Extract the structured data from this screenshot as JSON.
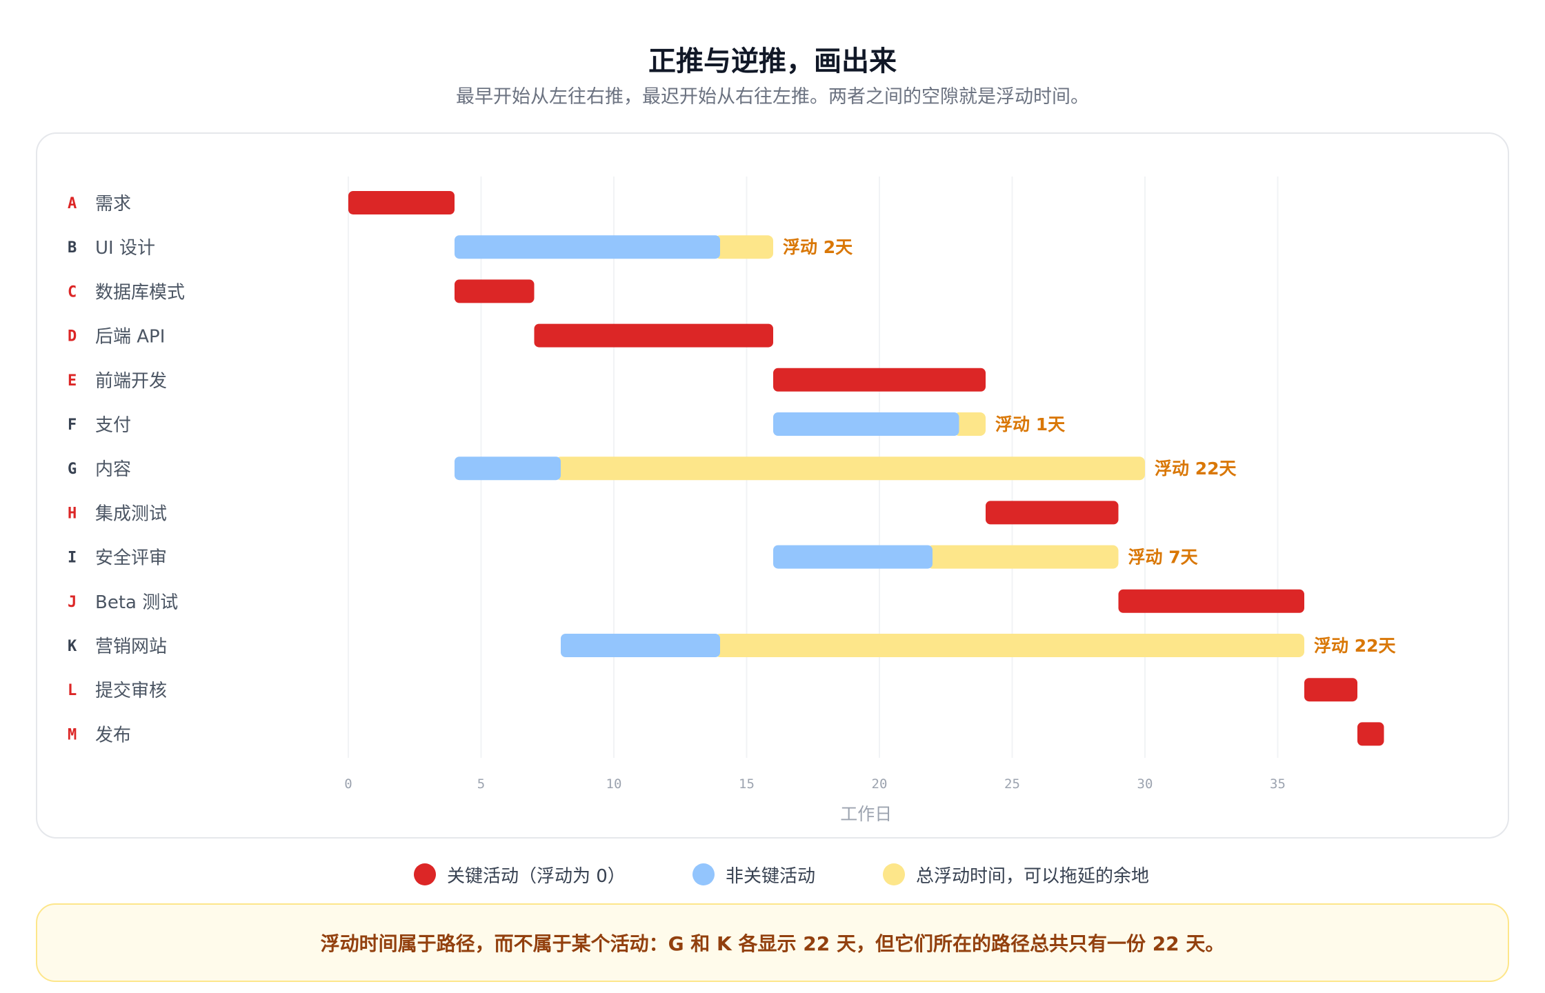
{
  "header": {
    "title": "正推与逆推，画出来",
    "subtitle": "最早开始从左往右推，最迟开始从右往左推。两者之间的空隙就是浮动时间。"
  },
  "colors": {
    "critical": "#dc2626",
    "non_critical": "#93c5fd",
    "float": "#fde68a",
    "float_label": "#d97706",
    "id_critical": "#dc2626",
    "id_normal": "#374151",
    "grid": "#f1f3f5",
    "axis_text": "#9ca3af"
  },
  "chart_data": {
    "type": "gantt",
    "xlabel": "工作日",
    "xlim": [
      0,
      39
    ],
    "xticks": [
      0,
      5,
      10,
      15,
      20,
      25,
      30,
      35
    ],
    "grid": true,
    "float_label_prefix": "浮动",
    "float_label_suffix": "天",
    "tasks": [
      {
        "id": "A",
        "name": "需求",
        "start": 0,
        "end": 4,
        "float": 0,
        "critical": true
      },
      {
        "id": "B",
        "name": "UI 设计",
        "start": 4,
        "end": 14,
        "float": 2,
        "critical": false
      },
      {
        "id": "C",
        "name": "数据库模式",
        "start": 4,
        "end": 7,
        "float": 0,
        "critical": true
      },
      {
        "id": "D",
        "name": "后端 API",
        "start": 7,
        "end": 16,
        "float": 0,
        "critical": true
      },
      {
        "id": "E",
        "name": "前端开发",
        "start": 16,
        "end": 24,
        "float": 0,
        "critical": true
      },
      {
        "id": "F",
        "name": "支付",
        "start": 16,
        "end": 23,
        "float": 1,
        "critical": false
      },
      {
        "id": "G",
        "name": "内容",
        "start": 4,
        "end": 8,
        "float": 22,
        "critical": false
      },
      {
        "id": "H",
        "name": "集成测试",
        "start": 24,
        "end": 29,
        "float": 0,
        "critical": true
      },
      {
        "id": "I",
        "name": "安全评审",
        "start": 16,
        "end": 22,
        "float": 7,
        "critical": false
      },
      {
        "id": "J",
        "name": "Beta 测试",
        "start": 29,
        "end": 36,
        "float": 0,
        "critical": true
      },
      {
        "id": "K",
        "name": "营销网站",
        "start": 8,
        "end": 14,
        "float": 22,
        "critical": false
      },
      {
        "id": "L",
        "name": "提交审核",
        "start": 36,
        "end": 38,
        "float": 0,
        "critical": true
      },
      {
        "id": "M",
        "name": "发布",
        "start": 38,
        "end": 39,
        "float": 0,
        "critical": true
      }
    ]
  },
  "legend": {
    "critical": "关键活动（浮动为 0）",
    "non_critical": "非关键活动",
    "float": "总浮动时间，可以拖延的余地"
  },
  "note": "浮动时间属于路径，而不属于某个活动：G 和 K 各显示 22 天，但它们所在的路径总共只有一份 22 天。"
}
